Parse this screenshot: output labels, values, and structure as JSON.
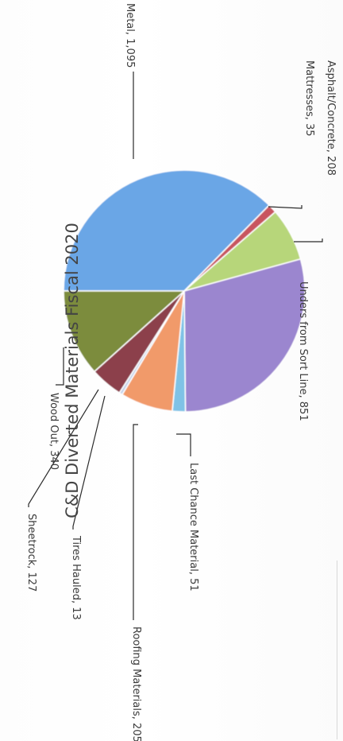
{
  "chart_data": {
    "type": "pie",
    "title": "C&D Diverted Materials Fiscal 2020",
    "slices": [
      {
        "label": "Metal, 1,095",
        "name": "Metal",
        "value": 1095,
        "color": "#6aa6e6"
      },
      {
        "label": "Mattresses, 35",
        "name": "Mattresses",
        "value": 35,
        "color": "#c8555e"
      },
      {
        "label": "Asphalt/Concrete, 208",
        "name": "Asphalt/Concrete",
        "value": 208,
        "color": "#b7d67a"
      },
      {
        "label": "Unders from Sort Line, 851",
        "name": "Unders from Sort Line",
        "value": 851,
        "color": "#9b86cf"
      },
      {
        "label": "Last Chance Material, 51",
        "name": "Last Chance Material",
        "value": 51,
        "color": "#7fc2e6"
      },
      {
        "label": "Roofing Materials, 205",
        "name": "Roofing Materials",
        "value": 205,
        "color": "#f19a6a"
      },
      {
        "label": "Tires Hauled, 13",
        "name": "Tires Hauled",
        "value": 13,
        "color": "#c6d3ea"
      },
      {
        "label": "Sheetrock, 127",
        "name": "Sheetrock",
        "value": 127,
        "color": "#8c3f4c"
      },
      {
        "label": "Wood Out, 340",
        "name": "Wood Out",
        "value": 340,
        "color": "#7b8c3c"
      }
    ]
  }
}
